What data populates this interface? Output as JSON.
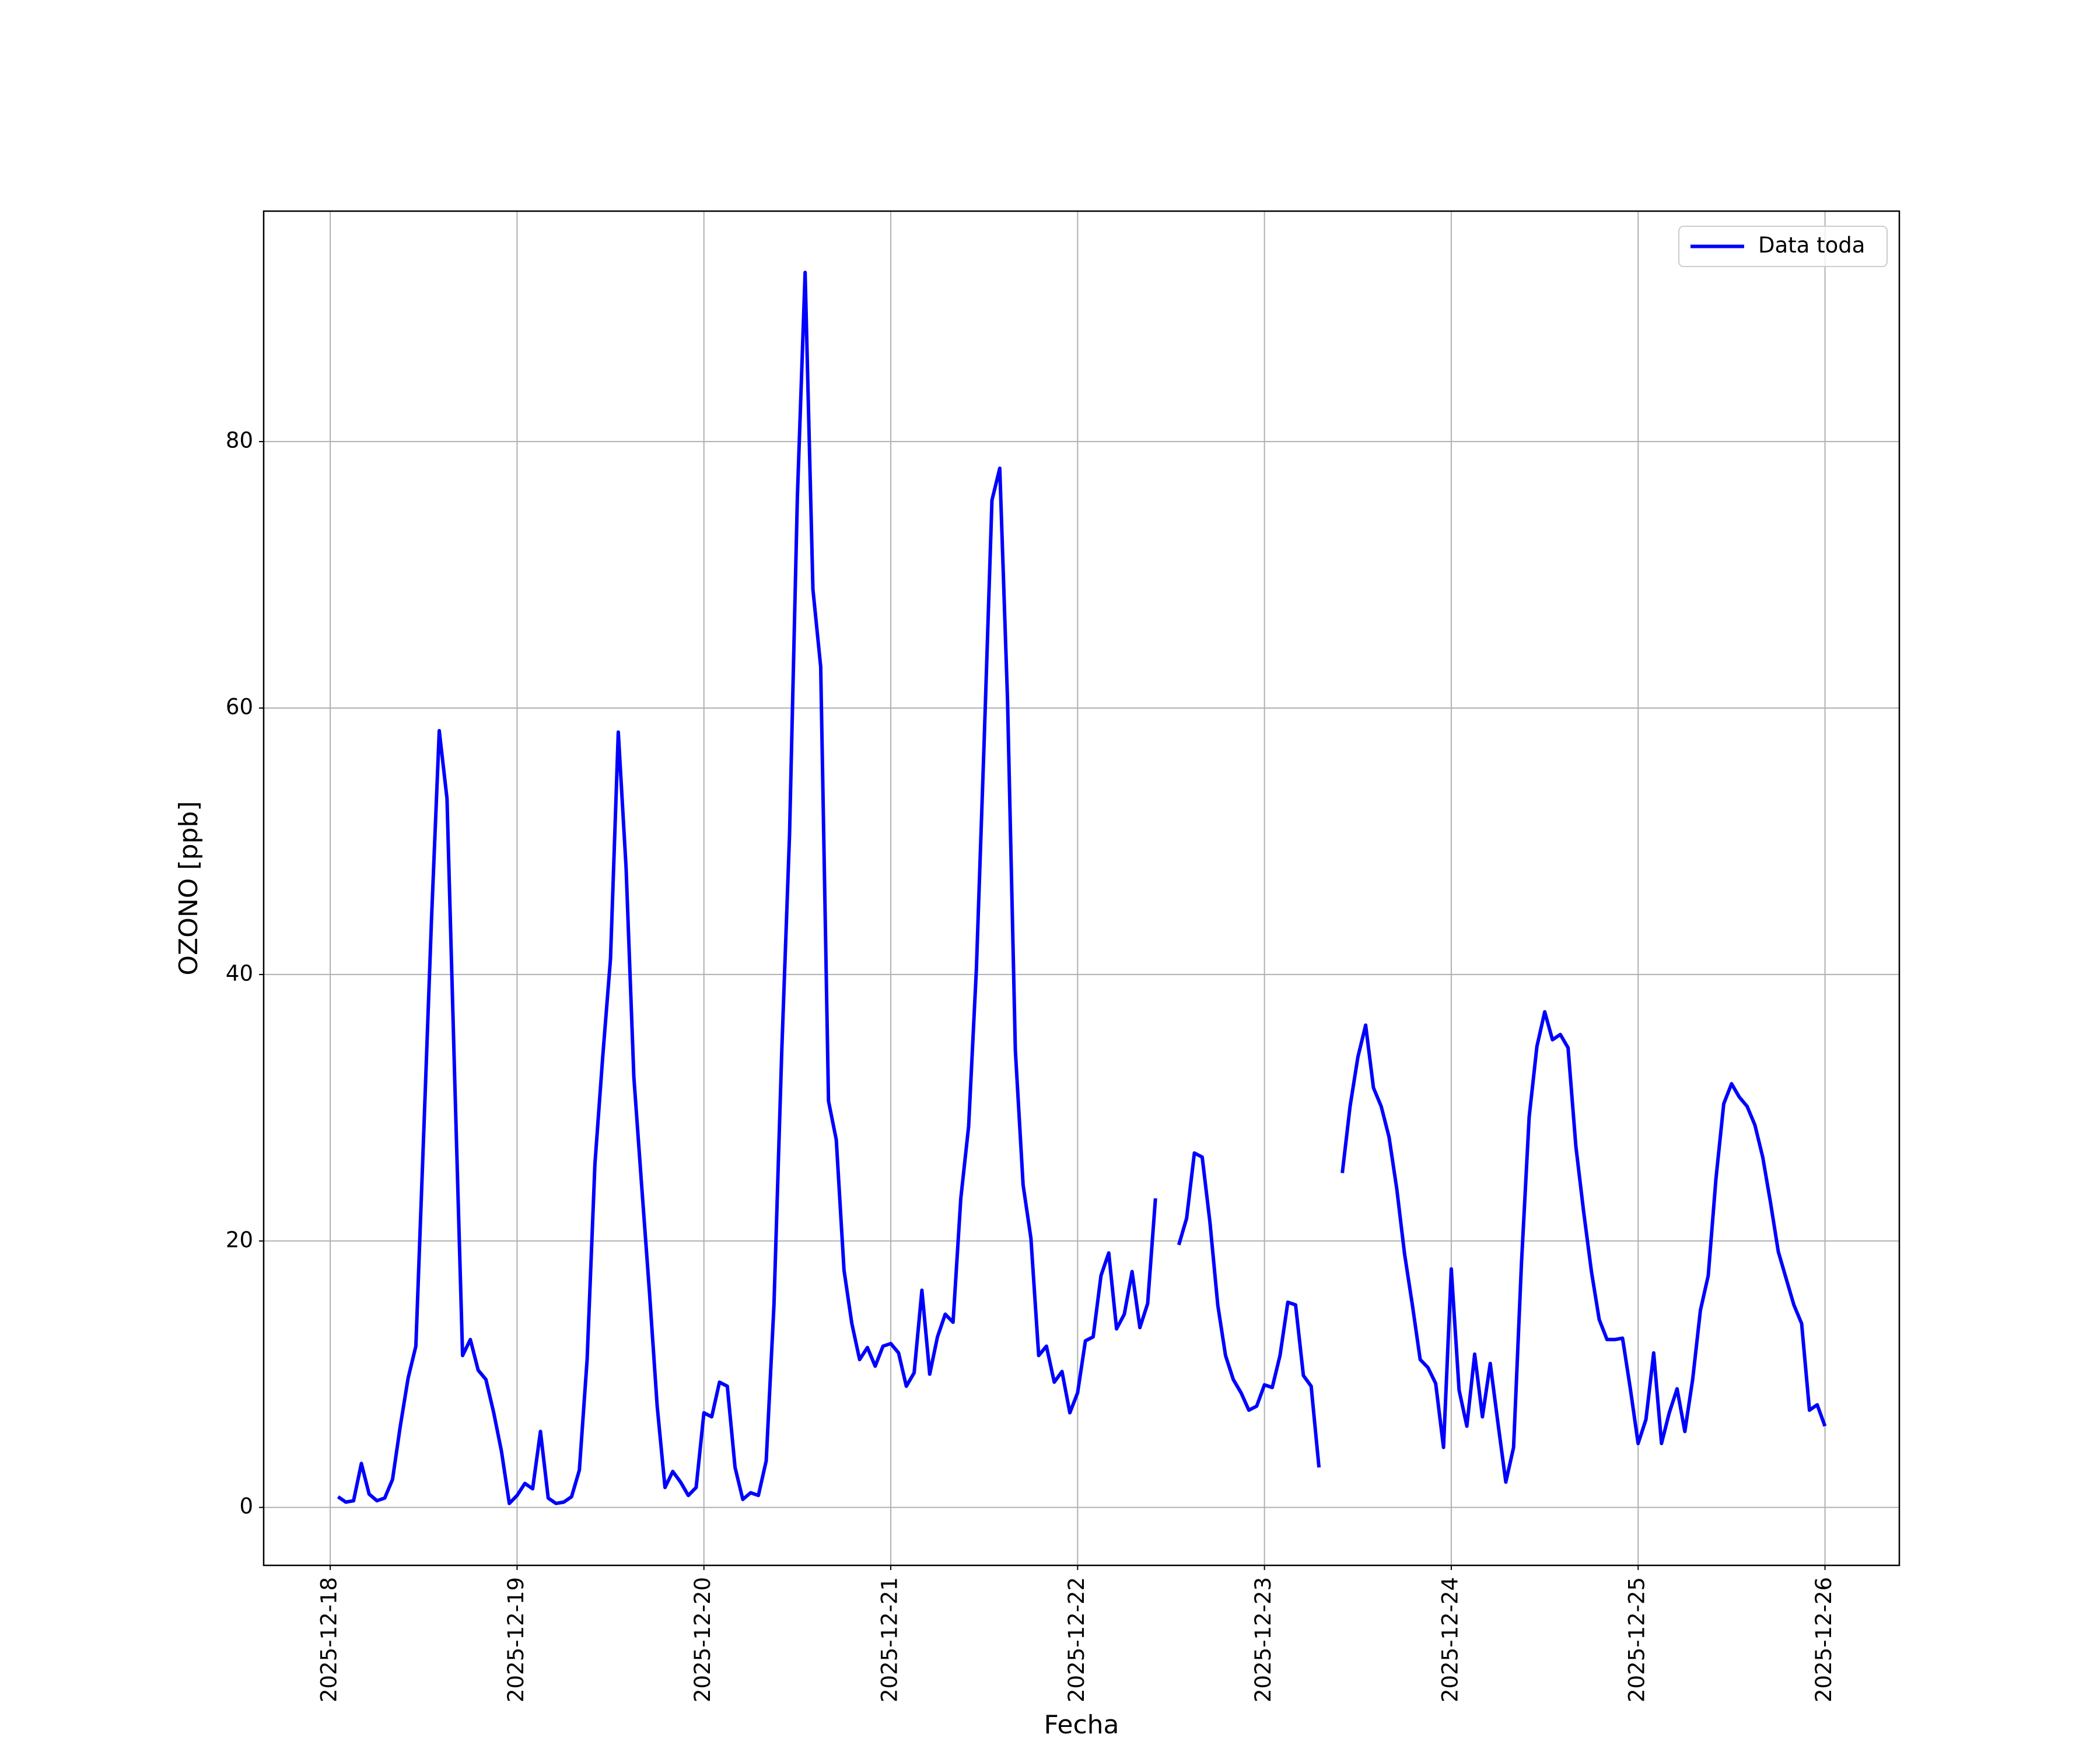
{
  "chart_data": {
    "type": "line",
    "xlabel": "Fecha",
    "ylabel": "OZONO [ppb]",
    "x": [
      "2025-12-18 01:00",
      "2025-12-18 02:00",
      "2025-12-18 03:00",
      "2025-12-18 04:00",
      "2025-12-18 05:00",
      "2025-12-18 06:00",
      "2025-12-18 07:00",
      "2025-12-18 08:00",
      "2025-12-18 09:00",
      "2025-12-18 10:00",
      "2025-12-18 11:00",
      "2025-12-18 12:00",
      "2025-12-18 13:00",
      "2025-12-18 14:00",
      "2025-12-18 15:00",
      "2025-12-18 16:00",
      "2025-12-18 17:00",
      "2025-12-18 18:00",
      "2025-12-18 19:00",
      "2025-12-18 20:00",
      "2025-12-18 21:00",
      "2025-12-18 22:00",
      "2025-12-18 23:00",
      "2025-12-19 00:00",
      "2025-12-19 01:00",
      "2025-12-19 02:00",
      "2025-12-19 03:00",
      "2025-12-19 04:00",
      "2025-12-19 05:00",
      "2025-12-19 06:00",
      "2025-12-19 07:00",
      "2025-12-19 08:00",
      "2025-12-19 09:00",
      "2025-12-19 10:00",
      "2025-12-19 11:00",
      "2025-12-19 12:00",
      "2025-12-19 13:00",
      "2025-12-19 14:00",
      "2025-12-19 15:00",
      "2025-12-19 16:00",
      "2025-12-19 17:00",
      "2025-12-19 18:00",
      "2025-12-19 19:00",
      "2025-12-19 20:00",
      "2025-12-19 21:00",
      "2025-12-19 22:00",
      "2025-12-19 23:00",
      "2025-12-20 00:00",
      "2025-12-20 01:00",
      "2025-12-20 02:00",
      "2025-12-20 03:00",
      "2025-12-20 04:00",
      "2025-12-20 05:00",
      "2025-12-20 06:00",
      "2025-12-20 07:00",
      "2025-12-20 08:00",
      "2025-12-20 09:00",
      "2025-12-20 10:00",
      "2025-12-20 11:00",
      "2025-12-20 12:00",
      "2025-12-20 13:00",
      "2025-12-20 14:00",
      "2025-12-20 15:00",
      "2025-12-20 16:00",
      "2025-12-20 17:00",
      "2025-12-20 18:00",
      "2025-12-20 19:00",
      "2025-12-20 20:00",
      "2025-12-20 21:00",
      "2025-12-20 22:00",
      "2025-12-20 23:00",
      "2025-12-21 00:00",
      "2025-12-21 01:00",
      "2025-12-21 02:00",
      "2025-12-21 03:00",
      "2025-12-21 04:00",
      "2025-12-21 05:00",
      "2025-12-21 06:00",
      "2025-12-21 07:00",
      "2025-12-21 08:00",
      "2025-12-21 09:00",
      "2025-12-21 10:00",
      "2025-12-21 11:00",
      "2025-12-21 12:00",
      "2025-12-21 13:00",
      "2025-12-21 14:00",
      "2025-12-21 15:00",
      "2025-12-21 16:00",
      "2025-12-21 17:00",
      "2025-12-21 18:00",
      "2025-12-21 19:00",
      "2025-12-21 20:00",
      "2025-12-21 21:00",
      "2025-12-21 22:00",
      "2025-12-21 23:00",
      "2025-12-22 00:00",
      "2025-12-22 01:00",
      "2025-12-22 02:00",
      "2025-12-22 03:00",
      "2025-12-22 04:00",
      "2025-12-22 05:00",
      "2025-12-22 06:00",
      "2025-12-22 07:00",
      "2025-12-22 08:00",
      "2025-12-22 09:00",
      "2025-12-22 10:00",
      "2025-12-22 11:00",
      "2025-12-22 12:00",
      "2025-12-22 13:00",
      "2025-12-22 14:00",
      "2025-12-22 15:00",
      "2025-12-22 16:00",
      "2025-12-22 17:00",
      "2025-12-22 18:00",
      "2025-12-22 19:00",
      "2025-12-22 20:00",
      "2025-12-22 21:00",
      "2025-12-22 22:00",
      "2025-12-22 23:00",
      "2025-12-23 00:00",
      "2025-12-23 01:00",
      "2025-12-23 02:00",
      "2025-12-23 03:00",
      "2025-12-23 04:00",
      "2025-12-23 05:00",
      "2025-12-23 06:00",
      "2025-12-23 07:00",
      "2025-12-23 08:00",
      "2025-12-23 09:00",
      "2025-12-23 10:00",
      "2025-12-23 11:00",
      "2025-12-23 12:00",
      "2025-12-23 13:00",
      "2025-12-23 14:00",
      "2025-12-23 15:00",
      "2025-12-23 16:00",
      "2025-12-23 17:00",
      "2025-12-23 18:00",
      "2025-12-23 19:00",
      "2025-12-23 20:00",
      "2025-12-23 21:00",
      "2025-12-23 22:00",
      "2025-12-23 23:00",
      "2025-12-24 00:00",
      "2025-12-24 01:00",
      "2025-12-24 02:00",
      "2025-12-24 03:00",
      "2025-12-24 04:00",
      "2025-12-24 05:00",
      "2025-12-24 06:00",
      "2025-12-24 07:00",
      "2025-12-24 08:00",
      "2025-12-24 09:00",
      "2025-12-24 10:00",
      "2025-12-24 11:00",
      "2025-12-24 12:00",
      "2025-12-24 13:00",
      "2025-12-24 14:00",
      "2025-12-24 15:00",
      "2025-12-24 16:00",
      "2025-12-24 17:00",
      "2025-12-24 18:00",
      "2025-12-24 19:00",
      "2025-12-24 20:00",
      "2025-12-24 21:00",
      "2025-12-24 22:00",
      "2025-12-24 23:00",
      "2025-12-25 00:00",
      "2025-12-25 01:00",
      "2025-12-25 02:00",
      "2025-12-25 03:00",
      "2025-12-25 04:00",
      "2025-12-25 05:00",
      "2025-12-25 06:00",
      "2025-12-25 07:00",
      "2025-12-25 08:00",
      "2025-12-25 09:00",
      "2025-12-25 10:00",
      "2025-12-25 11:00",
      "2025-12-25 12:00",
      "2025-12-25 13:00",
      "2025-12-25 14:00",
      "2025-12-25 15:00",
      "2025-12-25 16:00",
      "2025-12-25 17:00",
      "2025-12-25 18:00",
      "2025-12-25 19:00",
      "2025-12-25 20:00",
      "2025-12-25 21:00",
      "2025-12-25 22:00",
      "2025-12-25 23:00",
      "2025-12-26 00:00"
    ],
    "series": [
      {
        "name": "Data toda",
        "color": "#0000ff",
        "values": [
          0.8,
          0.4,
          0.5,
          3.3,
          1.0,
          0.5,
          0.7,
          2.1,
          6.1,
          9.7,
          12.1,
          28,
          44,
          58.3,
          53.2,
          32,
          11.4,
          12.6,
          10.3,
          9.6,
          7.1,
          4.2,
          0.3,
          0.9,
          1.8,
          1.4,
          5.7,
          0.7,
          0.3,
          0.4,
          0.8,
          2.8,
          11.1,
          25.8,
          33.8,
          41.2,
          58.2,
          48,
          32.3,
          24.2,
          16.2,
          7.6,
          1.5,
          2.7,
          1.9,
          0.9,
          1.5,
          7.1,
          6.8,
          9.4,
          9.1,
          3.0,
          0.6,
          1.1,
          0.9,
          3.5,
          15.2,
          34.3,
          50.5,
          75.8,
          92.7,
          68.9,
          63.1,
          30.5,
          27.6,
          17.8,
          13.8,
          11.1,
          12.0,
          10.6,
          12.1,
          12.3,
          11.6,
          9.1,
          10.1,
          16.3,
          10.0,
          12.8,
          14.5,
          13.9,
          23.2,
          28.6,
          40.4,
          57.6,
          75.6,
          78.0,
          60.6,
          34.3,
          24.2,
          20.2,
          11.4,
          12.1,
          9.4,
          10.2,
          7.1,
          8.6,
          12.5,
          12.8,
          17.4,
          19.1,
          13.4,
          14.5,
          17.7,
          13.5,
          15.3,
          23.2,
          null,
          null,
          19.7,
          21.7,
          26.6,
          26.3,
          21.4,
          15.2,
          11.4,
          9.6,
          8.6,
          7.3,
          7.6,
          9.2,
          9.0,
          11.4,
          15.4,
          15.2,
          9.9,
          9.1,
          3.0,
          null,
          null,
          25.1,
          30.1,
          33.8,
          36.2,
          31.5,
          30.1,
          27.8,
          23.9,
          19.0,
          15.2,
          11.1,
          10.5,
          9.3,
          4.5,
          17.9,
          8.8,
          6.1,
          11.5,
          6.8,
          10.8,
          6.3,
          1.9,
          4.5,
          18.2,
          29.3,
          34.6,
          37.2,
          35.1,
          35.5,
          34.5,
          27.1,
          22.2,
          17.7,
          14.1,
          12.6,
          12.6,
          12.7,
          8.9,
          4.8,
          6.6,
          11.6,
          4.8,
          7.1,
          8.9,
          5.7,
          9.6,
          14.8,
          17.4,
          24.7,
          30.3,
          31.8,
          30.8,
          30.1,
          28.7,
          26.3,
          22.9,
          19.2,
          17.2,
          15.2,
          13.8,
          7.3,
          7.7,
          6.1
        ]
      }
    ],
    "xlim": [
      "2025-12-17 15:27",
      "2025-12-26 09:33"
    ],
    "xticks": [
      "2025-12-18",
      "2025-12-19",
      "2025-12-20",
      "2025-12-21",
      "2025-12-22",
      "2025-12-23",
      "2025-12-24",
      "2025-12-25",
      "2025-12-26"
    ],
    "ylim": [
      -4.35,
      97.3
    ],
    "yticks": [
      0,
      20,
      40,
      60,
      80
    ],
    "grid": true,
    "legend": "upper right"
  }
}
